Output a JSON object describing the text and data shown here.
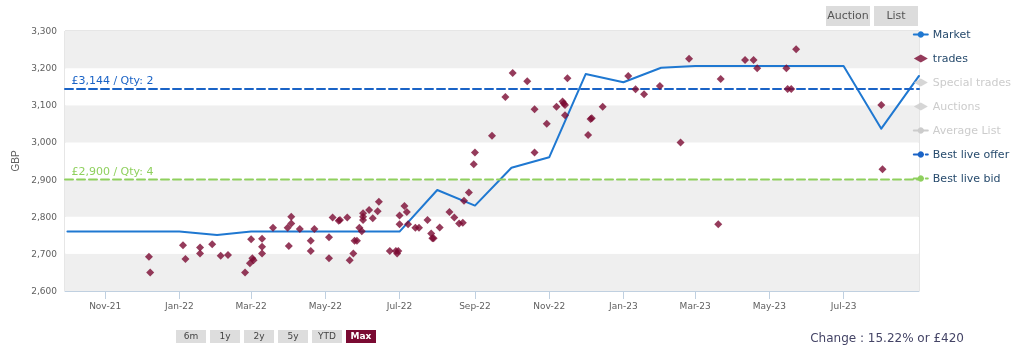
{
  "chart_data": {
    "type": "line",
    "ylabel": "GBP",
    "xlim": [
      "2021-09-29",
      "2023-09-01"
    ],
    "ylim": [
      2600,
      3300
    ],
    "yticks": [
      {
        "value": 2600,
        "label": "2,600"
      },
      {
        "value": 2700,
        "label": "2,700"
      },
      {
        "value": 2800,
        "label": "2,800"
      },
      {
        "value": 2900,
        "label": "2,900"
      },
      {
        "value": 3000,
        "label": "3,000"
      },
      {
        "value": 3100,
        "label": "3,100"
      },
      {
        "value": 3200,
        "label": "3,200"
      },
      {
        "value": 3300,
        "label": "3,300"
      }
    ],
    "xticks": [
      {
        "value": "2021-11-01",
        "label": "Nov-21"
      },
      {
        "value": "2022-01-01",
        "label": "Jan-22"
      },
      {
        "value": "2022-03-01",
        "label": "Mar-22"
      },
      {
        "value": "2022-05-01",
        "label": "May-22"
      },
      {
        "value": "2022-07-01",
        "label": "Jul-22"
      },
      {
        "value": "2022-09-01",
        "label": "Sep-22"
      },
      {
        "value": "2022-11-01",
        "label": "Nov-22"
      },
      {
        "value": "2023-01-01",
        "label": "Jan-23"
      },
      {
        "value": "2023-03-01",
        "label": "Mar-23"
      },
      {
        "value": "2023-05-01",
        "label": "May-23"
      },
      {
        "value": "2023-07-01",
        "label": "Jul-23"
      }
    ],
    "legend": "right",
    "series": [
      {
        "name": "Market",
        "color": "#1f78d1",
        "marker": "none",
        "line_style": "solid",
        "x": [
          "2021-10-01",
          "2021-11-01",
          "2021-12-01",
          "2022-01-01",
          "2022-02-01",
          "2022-03-01",
          "2022-04-01",
          "2022-05-01",
          "2022-06-01",
          "2022-07-01",
          "2022-08-01",
          "2022-09-01",
          "2022-10-01",
          "2022-11-01",
          "2022-12-01",
          "2023-01-01",
          "2023-02-01",
          "2023-03-01",
          "2023-04-01",
          "2023-05-01",
          "2023-06-01",
          "2023-07-01",
          "2023-08-01",
          "2023-09-01"
        ],
        "values": [
          2760,
          2760,
          2760,
          2760,
          2751,
          2760,
          2760,
          2760,
          2760,
          2760,
          2872,
          2830,
          2932,
          2960,
          3184,
          3162,
          3201,
          3206,
          3206,
          3206,
          3206,
          3206,
          3037,
          3179
        ]
      },
      {
        "name": "trades",
        "type": "scatter",
        "color": "#7a0a32",
        "marker": "diamond",
        "x": [
          "2021-12-07",
          "2021-12-08",
          "2022-01-04",
          "2022-01-06",
          "2022-01-18",
          "2022-01-18",
          "2022-01-28",
          "2022-02-04",
          "2022-02-10",
          "2022-02-24",
          "2022-03-01",
          "2022-02-28",
          "2022-03-02",
          "2022-03-03",
          "2022-03-10",
          "2022-03-10",
          "2022-03-10",
          "2022-03-19",
          "2022-03-31",
          "2022-04-03",
          "2022-04-03",
          "2022-04-01",
          "2022-04-10",
          "2022-04-22",
          "2022-04-19",
          "2022-04-19",
          "2022-05-04",
          "2022-05-04",
          "2022-05-07",
          "2022-05-12",
          "2022-05-13",
          "2022-05-19",
          "2022-05-21",
          "2022-05-24",
          "2022-05-25",
          "2022-05-27",
          "2022-05-29",
          "2022-05-31",
          "2022-06-01",
          "2022-06-01",
          "2022-06-01",
          "2022-06-06",
          "2022-06-09",
          "2022-06-13",
          "2022-06-14",
          "2022-06-23",
          "2022-06-28",
          "2022-06-29",
          "2022-06-30",
          "2022-07-01",
          "2022-07-01",
          "2022-07-05",
          "2022-07-07",
          "2022-07-08",
          "2022-07-14",
          "2022-07-17",
          "2022-07-24",
          "2022-07-27",
          "2022-07-28",
          "2022-07-29",
          "2022-08-03",
          "2022-08-11",
          "2022-08-15",
          "2022-08-19",
          "2022-08-22",
          "2022-08-23",
          "2022-08-27",
          "2022-08-31",
          "2022-09-01",
          "2022-09-15",
          "2022-09-26",
          "2022-10-02",
          "2022-10-14",
          "2022-10-20",
          "2022-10-20",
          "2022-10-30",
          "2022-11-07",
          "2022-11-12",
          "2022-11-13",
          "2022-11-14",
          "2022-11-14",
          "2022-11-16",
          "2022-12-03",
          "2022-12-05",
          "2022-12-06",
          "2022-12-15",
          "2023-01-05",
          "2023-01-11",
          "2023-01-18",
          "2023-01-31",
          "2023-02-17",
          "2023-02-24",
          "2023-03-20",
          "2023-03-22",
          "2023-04-11",
          "2023-04-18",
          "2023-04-21",
          "2023-05-15",
          "2023-05-16",
          "2023-05-19",
          "2023-05-23",
          "2023-08-01",
          "2023-08-02"
        ],
        "values": [
          2692,
          2650,
          2723,
          2686,
          2717,
          2701,
          2726,
          2695,
          2697,
          2650,
          2739,
          2675,
          2688,
          2683,
          2741,
          2719,
          2701,
          2770,
          2770,
          2800,
          2782,
          2721,
          2767,
          2767,
          2735,
          2708,
          2745,
          2688,
          2798,
          2789,
          2791,
          2798,
          2683,
          2701,
          2735,
          2735,
          2770,
          2761,
          2809,
          2800,
          2791,
          2818,
          2796,
          2815,
          2840,
          2708,
          2708,
          2701,
          2708,
          2803,
          2780,
          2829,
          2813,
          2780,
          2770,
          2770,
          2791,
          2755,
          2742,
          2742,
          2771,
          2813,
          2798,
          2782,
          2784,
          2843,
          2865,
          2941,
          2973,
          3018,
          3122,
          3187,
          3165,
          3089,
          2973,
          3050,
          3096,
          3110,
          3105,
          3101,
          3073,
          3173,
          3020,
          3063,
          3065,
          3096,
          3179,
          3143,
          3130,
          3152,
          3000,
          3225,
          2780,
          3171,
          3222,
          3222,
          3200,
          3200,
          3144,
          3144,
          3251,
          3101,
          2928
        ]
      },
      {
        "name": "Special trades",
        "type": "scatter",
        "color": "#cccccc",
        "marker": "diamond"
      },
      {
        "name": "Auctions",
        "type": "scatter",
        "color": "#cccccc",
        "marker": "diamond"
      },
      {
        "name": "Average List",
        "color": "#cccccc",
        "marker": "none",
        "line_style": "solid"
      },
      {
        "name": "Best live offer",
        "color": "#1a63c6",
        "marker": "none",
        "line_style": "dashed",
        "x": [
          "2021-09-29",
          "2023-09-01"
        ],
        "values": [
          3144,
          3144
        ]
      },
      {
        "name": "Best live bid",
        "color": "#8fd05e",
        "marker": "none",
        "line_style": "dashed",
        "x": [
          "2021-09-29",
          "2023-09-01"
        ],
        "values": [
          2900,
          2900
        ]
      }
    ],
    "annotations": [
      {
        "text": "£3,144 / Qty: 2",
        "x": "2021-10-01",
        "y": 3144
      },
      {
        "text": "£2,900 / Qty: 4",
        "x": "2021-10-01",
        "y": 2900
      },
      "Auction",
      "List",
      "6m",
      "1y",
      "2y",
      "5y",
      "YTD",
      "Max",
      "Change : 15.22% or £420"
    ]
  }
}
